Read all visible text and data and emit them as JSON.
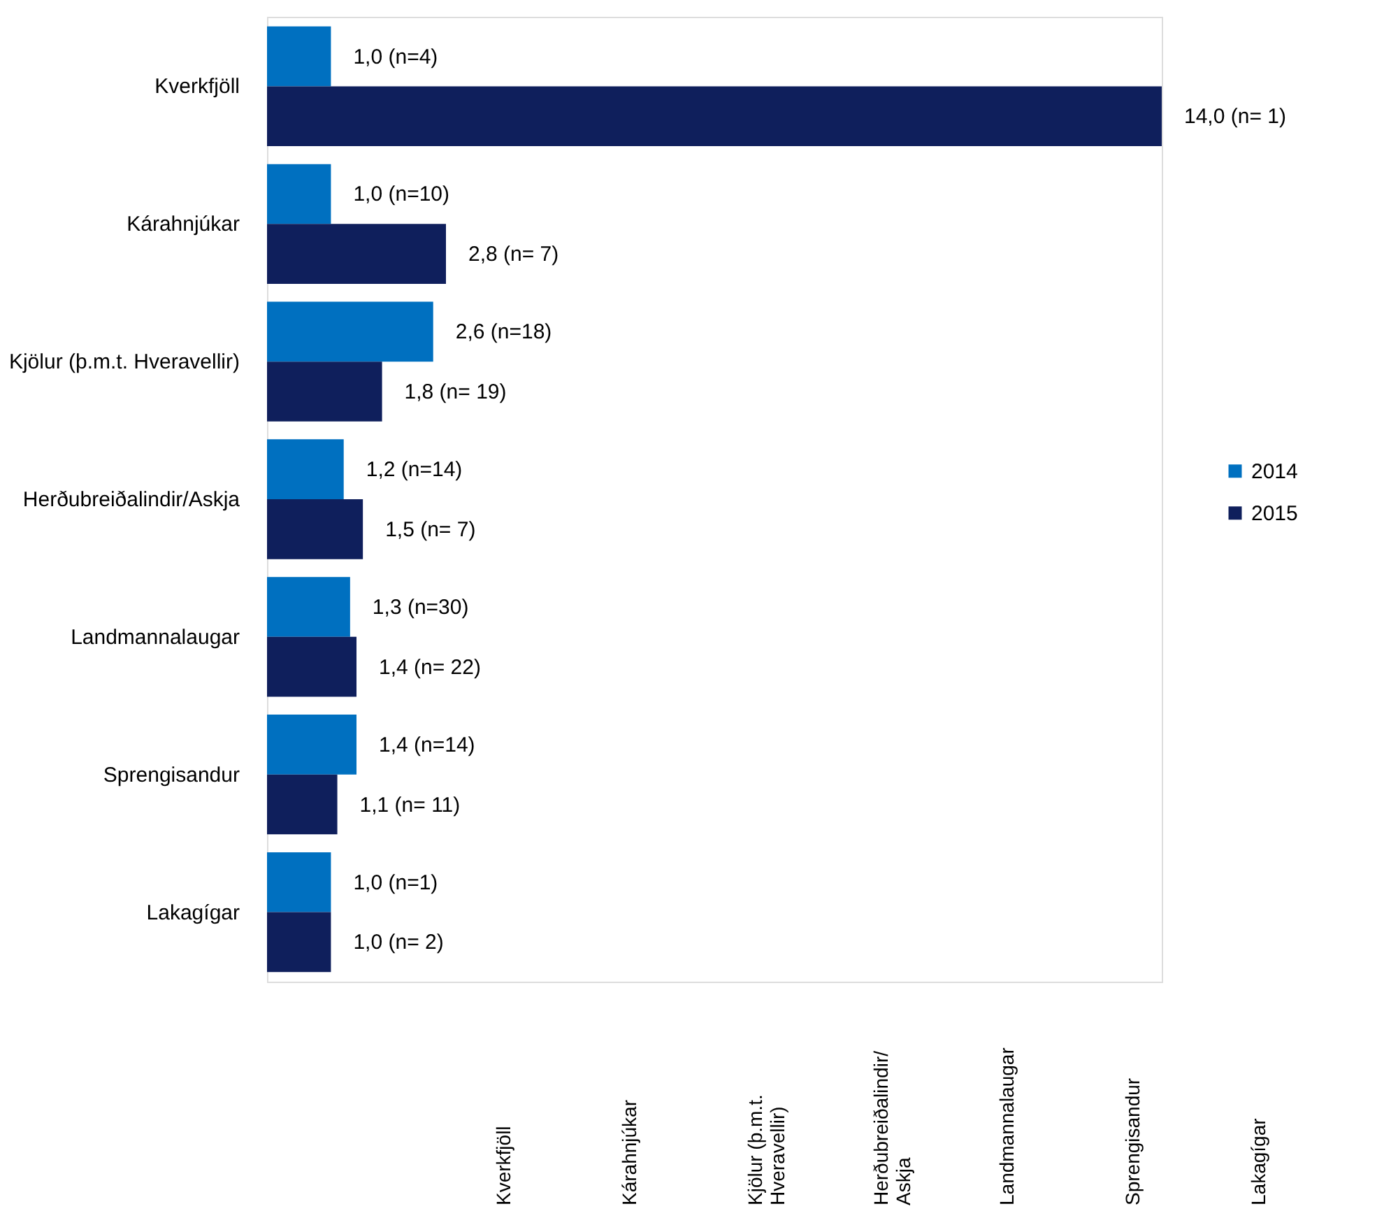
{
  "chart_data": {
    "type": "bar",
    "orientation": "horizontal",
    "categories": [
      "Kverkfjöll",
      "Kárahnjúkar",
      "Kjölur (þ.m.t. Hveravellir)",
      "Herðubreiðalindir/Askja",
      "Landmannalaugar",
      "Sprengisandur",
      "Lakagígar"
    ],
    "series": [
      {
        "name": "2014",
        "color": "#0070c0",
        "values": [
          1.0,
          1.0,
          2.6,
          1.2,
          1.3,
          1.4,
          1.0
        ],
        "value_labels": [
          "1,0  (n=4)",
          "1,0  (n=10)",
          "2,6  (n=18)",
          "1,2  (n=14)",
          "1,3  (n=30)",
          "1,4  (n=14)",
          "1,0  (n=1)"
        ]
      },
      {
        "name": "2015",
        "color": "#0f1f5c",
        "values": [
          14.0,
          2.8,
          1.8,
          1.5,
          1.4,
          1.1,
          1.0
        ],
        "value_labels": [
          "14,0 (n= 1)",
          "2,8 (n= 7)",
          "1,8 (n= 19)",
          "1,5 (n= 7)",
          "1,4 (n= 22)",
          "1,1 (n= 11)",
          "1,0 (n= 2)"
        ]
      }
    ],
    "annotations": [
      "Kverkfjöll",
      "Kárahnjúkar",
      "Kjölur (þ.m.t.\nHveravellir)",
      "Herðubreiðalindir/\nAskja",
      "Landmannalaugar",
      "Sprengisandur",
      "Lakagígar"
    ],
    "legend": "right",
    "grid": false
  }
}
